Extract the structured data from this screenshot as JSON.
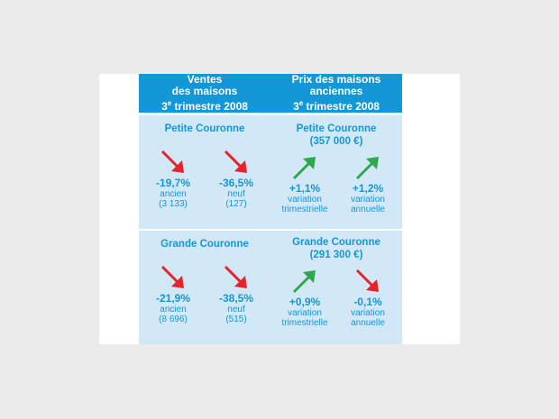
{
  "ventes": {
    "header_line1": "Ventes",
    "header_line2": "des maisons",
    "header_num": "3",
    "header_sup": "e",
    "header_rest": " trimestre 2008",
    "petite": {
      "title": "Petite Couronne",
      "items": [
        {
          "value": "-19,7%",
          "label": "ancien",
          "sub": "(3 133)",
          "trend": "down"
        },
        {
          "value": "-36,5%",
          "label": "neuf",
          "sub": "(127)",
          "trend": "down"
        }
      ]
    },
    "grande": {
      "title": "Grande Couronne",
      "items": [
        {
          "value": "-21,9%",
          "label": "ancien",
          "sub": "(8 696)",
          "trend": "down"
        },
        {
          "value": "-38,5%",
          "label": "neuf",
          "sub": "(515)",
          "trend": "down"
        }
      ]
    }
  },
  "prix": {
    "header_line1": "Prix des maisons",
    "header_line2": "anciennes",
    "header_num": "3",
    "header_sup": "e",
    "header_rest": " trimestre 2008",
    "petite": {
      "title": "Petite Couronne",
      "price": "(357 000 €)",
      "items": [
        {
          "value": "+1,1%",
          "label": "variation",
          "sub": "trimestrielle",
          "trend": "up"
        },
        {
          "value": "+1,2%",
          "label": "variation",
          "sub": "annuelle",
          "trend": "up"
        }
      ]
    },
    "grande": {
      "title": "Grande Couronne",
      "price": "(291 300 €)",
      "items": [
        {
          "value": "+0,9%",
          "label": "variation",
          "sub": "trimestrielle",
          "trend": "up"
        },
        {
          "value": "-0,1%",
          "label": "variation",
          "sub": "annuelle",
          "trend": "down"
        }
      ]
    }
  },
  "colors": {
    "accent_blue": "#1497d6",
    "panel_bg": "#d3e8f6",
    "arrow_down": "#e4232b",
    "arrow_up": "#2ea84a"
  }
}
